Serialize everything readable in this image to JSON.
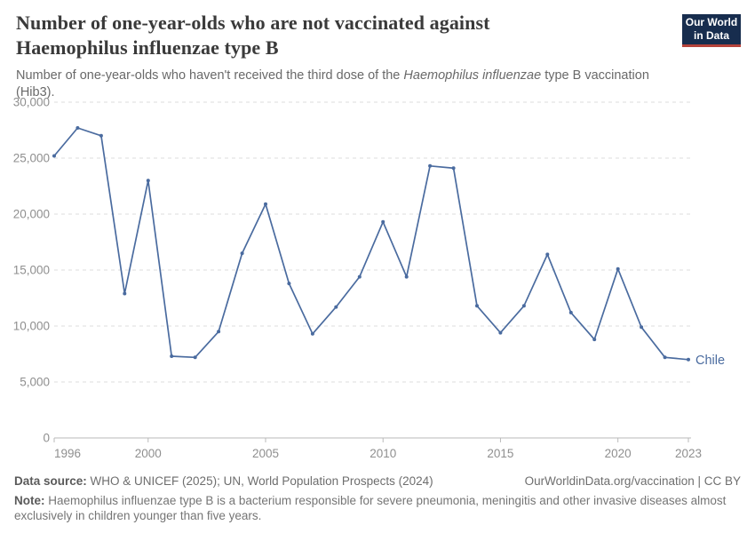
{
  "header": {
    "title": "Number of one-year-olds who are not vaccinated against Haemophilus influenzae type B",
    "subtitle_before": "Number of one-year-olds who haven't received the third dose of the ",
    "subtitle_italic": "Haemophilus influenzae",
    "subtitle_after": " type B vaccination (Hib3).",
    "logo": {
      "line1": "Our World",
      "line2": "in Data"
    }
  },
  "chart_data": {
    "type": "line",
    "title": "Number of one-year-olds who are not vaccinated against Haemophilus influenzae type B",
    "entity_label": "Chile",
    "xlim": [
      1996,
      2023
    ],
    "ylim": [
      0,
      30000
    ],
    "x_ticks": [
      1996,
      2000,
      2005,
      2010,
      2015,
      2020,
      2023
    ],
    "y_ticks": [
      0,
      5000,
      10000,
      15000,
      20000,
      25000,
      30000
    ],
    "grid": "dashed-horizontal",
    "legend_position": "end-of-line-label",
    "series": [
      {
        "name": "Chile",
        "color": "#4a6b9f",
        "x": [
          1996,
          1997,
          1998,
          1999,
          2000,
          2001,
          2002,
          2003,
          2004,
          2005,
          2006,
          2007,
          2008,
          2009,
          2010,
          2011,
          2012,
          2013,
          2014,
          2015,
          2016,
          2017,
          2018,
          2019,
          2020,
          2021,
          2022,
          2023
        ],
        "values": [
          25200,
          27700,
          27000,
          12900,
          23000,
          7300,
          7200,
          9500,
          16500,
          20900,
          13800,
          9300,
          11700,
          14400,
          19300,
          14400,
          24300,
          24100,
          11800,
          9400,
          11800,
          16400,
          11200,
          8800,
          15100,
          9900,
          7200,
          7000
        ]
      }
    ]
  },
  "footer": {
    "source_label": "Data source:",
    "source_text": "WHO & UNICEF (2025); UN, World Population Prospects (2024)",
    "link_text": "OurWorldinData.org/vaccination | CC BY",
    "note_label": "Note:",
    "note_text": "Haemophilus influenzae type B is a bacterium responsible for severe pneumonia, meningitis and other invasive diseases almost exclusively in children younger than five years."
  },
  "colors": {
    "line": "#4a6b9f",
    "title_text": "#3a3a3a",
    "axis_text": "#8f8f8f",
    "gridline": "#dedede",
    "axis_line": "#bababa",
    "logo_navy": "#172d4e",
    "logo_red": "#b5433b"
  }
}
